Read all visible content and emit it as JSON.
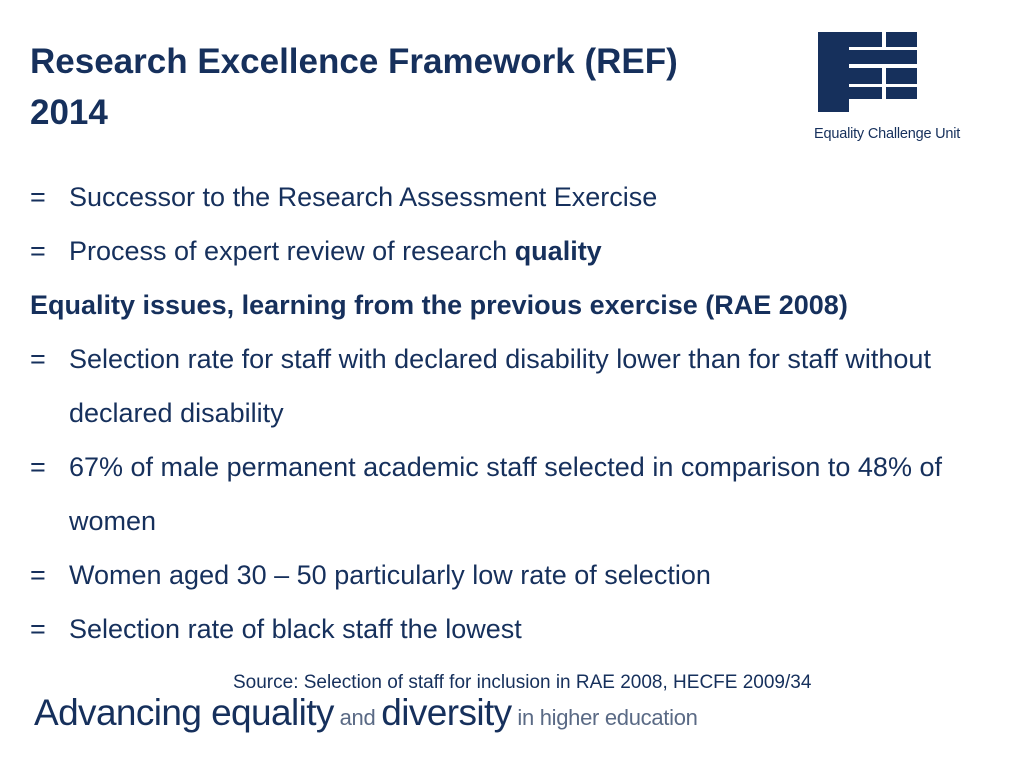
{
  "title": {
    "line1": "Research Excellence Framework (REF)",
    "line2": "2014"
  },
  "logo": {
    "caption": "Equality Challenge Unit",
    "icon": "ecu-logo-icon",
    "color": "#16305c"
  },
  "bullet_symbol": "=",
  "items": [
    {
      "kind": "bullet",
      "text": "Successor to the Research Assessment Exercise"
    },
    {
      "kind": "bullet",
      "text": "Process of expert review of research ",
      "bold": "quality"
    },
    {
      "kind": "heading",
      "text": "Equality issues, learning from the previous exercise (RAE 2008)"
    },
    {
      "kind": "bullet",
      "text": "Selection rate for staff with declared disability lower than for staff without declared disability"
    },
    {
      "kind": "bullet",
      "text": "67% of male permanent academic staff selected in comparison to 48% of women"
    },
    {
      "kind": "bullet",
      "text": "Women aged 30 – 50 particularly low rate of selection"
    },
    {
      "kind": "bullet",
      "text": "Selection rate of black staff the lowest"
    }
  ],
  "source": "Source: Selection of staff for inclusion in RAE 2008, HECFE 2009/34",
  "footer": {
    "part1": "Advancing equality",
    "part2": " and ",
    "part3": "diversity",
    "part4": " in higher education"
  },
  "colors": {
    "primary": "#16305c",
    "muted": "#5a6a85"
  }
}
